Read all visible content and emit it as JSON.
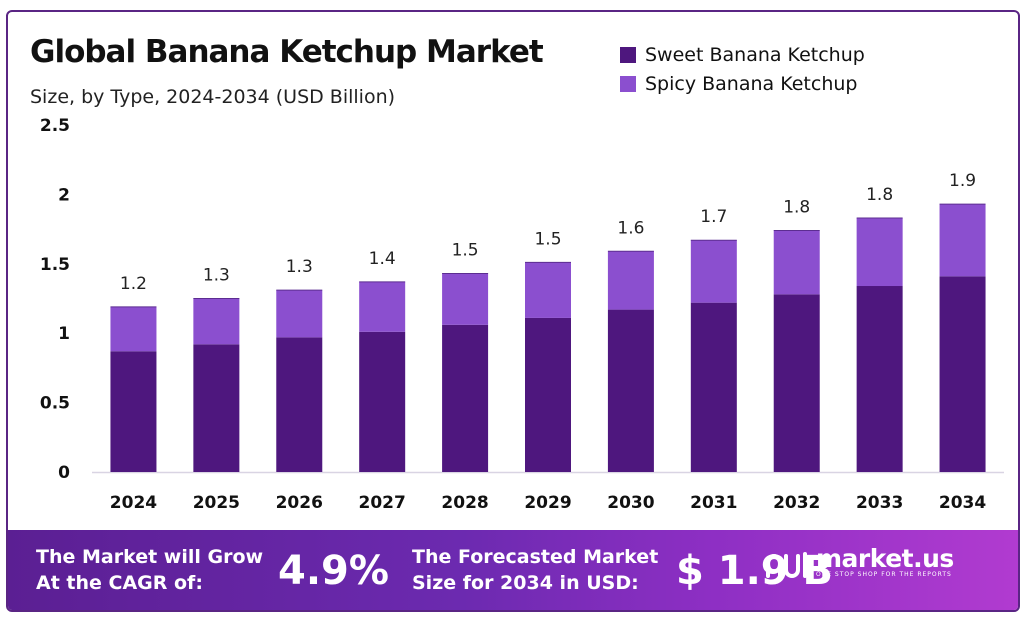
{
  "title": "Global Banana Ketchup Market",
  "subtitle": "Size, by Type, 2024-2034 (USD Billion)",
  "colors": {
    "sweet": "#4e177e",
    "spicy": "#8b4fcf",
    "axis": "#d9d4e3",
    "frame": "#5a2584"
  },
  "chart_data": {
    "type": "bar",
    "stacked": true,
    "categories": [
      "2024",
      "2025",
      "2026",
      "2027",
      "2028",
      "2029",
      "2030",
      "2031",
      "2032",
      "2033",
      "2034"
    ],
    "series": [
      {
        "name": "Sweet Banana Ketchup",
        "values": [
          0.87,
          0.92,
          0.97,
          1.01,
          1.06,
          1.11,
          1.17,
          1.22,
          1.28,
          1.34,
          1.41
        ]
      },
      {
        "name": "Spicy Banana Ketchup",
        "values": [
          0.32,
          0.33,
          0.34,
          0.36,
          0.37,
          0.4,
          0.42,
          0.45,
          0.46,
          0.49,
          0.52
        ]
      }
    ],
    "totals_labels": [
      "1.2",
      "1.3",
      "1.3",
      "1.4",
      "1.5",
      "1.5",
      "1.6",
      "1.7",
      "1.8",
      "1.8",
      "1.9"
    ],
    "yticks": [
      "0",
      "0.5",
      "1",
      "1.5",
      "2",
      "2.5"
    ],
    "ylim": [
      0,
      2.5
    ],
    "grid": false,
    "legend": "top-right"
  },
  "footer": {
    "cagr_text_line1": "The Market will Grow",
    "cagr_text_line2": "At the CAGR of:",
    "cagr_value": "4.9%",
    "forecast_text_line1": "The Forecasted Market",
    "forecast_text_line2": "Size for 2034 in USD:",
    "forecast_value": "$ 1.9 B",
    "brand_name": "market.us",
    "brand_tagline": "ONE STOP SHOP FOR THE REPORTS"
  }
}
